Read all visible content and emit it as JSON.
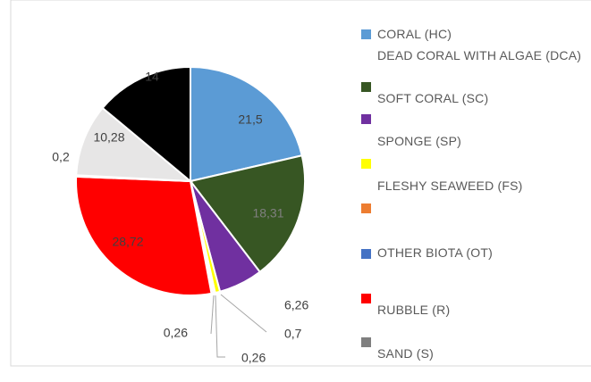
{
  "chart_data": {
    "type": "pie",
    "categories": [
      "CORAL (HC)",
      "DEAD CORAL WITH ALGAE (DCA)",
      "SOFT CORAL (SC)",
      "SPONGE (SP)",
      "FLESHY SEAWEED (FS)",
      "OTHER BIOTA (OT)",
      "RUBBLE (R)",
      "SAND (S)",
      null,
      null
    ],
    "values": [
      21.5,
      18.31,
      6.26,
      0.7,
      0.26,
      0.26,
      28.72,
      0.2,
      10.28,
      14
    ],
    "value_labels": [
      "21,5",
      "18,31",
      "6,26",
      "0,7",
      "0,26",
      "0,26",
      "28,72",
      "0,2",
      "10,28",
      "14"
    ],
    "colors": [
      "#5b9bd5",
      "#375623",
      "#7030a0",
      "#ffff00",
      "#ed7d31",
      "#4472c4",
      "#ff0000",
      "#7f7f7f",
      "#e7e6e6",
      "#000000"
    ],
    "legend": "right"
  }
}
